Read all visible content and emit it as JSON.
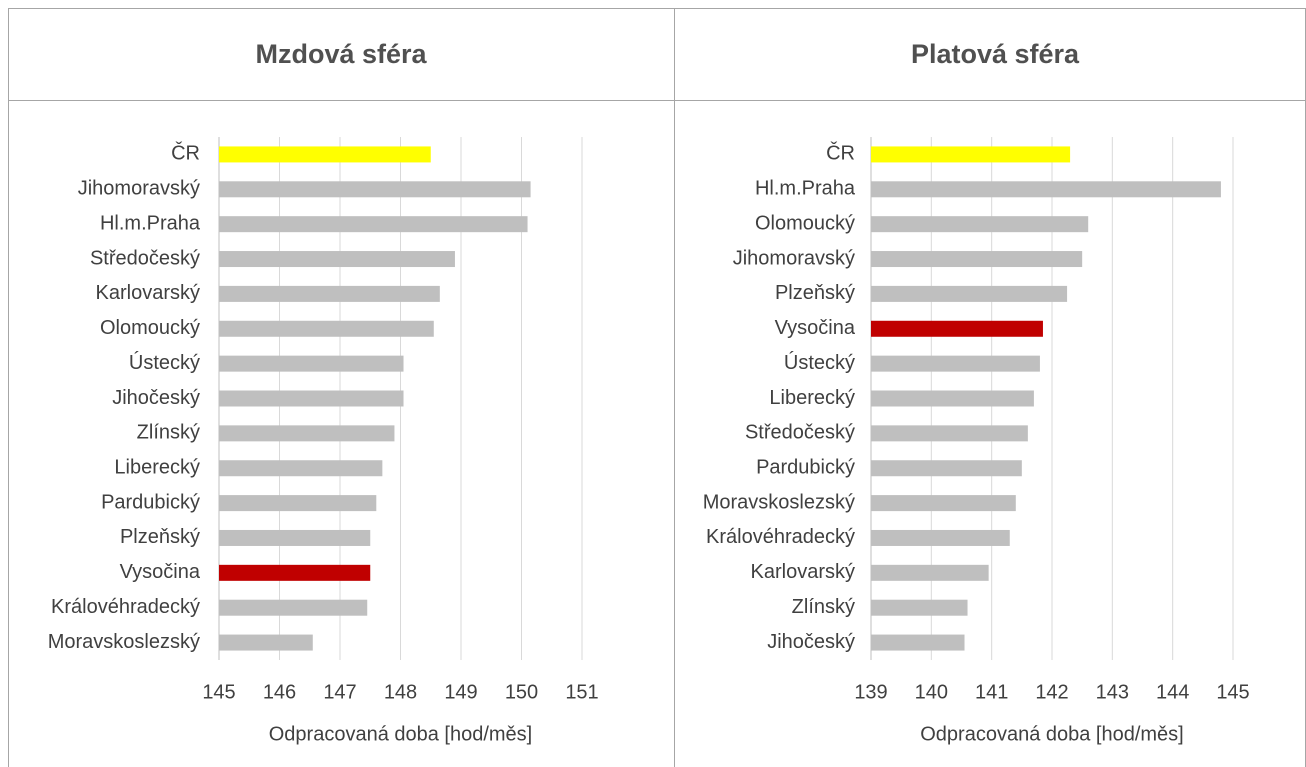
{
  "chart_data": [
    {
      "type": "bar",
      "orientation": "horizontal",
      "title": "Mzdová sféra",
      "categories": [
        "ČR",
        "Jihomoravský",
        "Hl.m.Praha",
        "Středočeský",
        "Karlovarský",
        "Olomoucký",
        "Ústecký",
        "Jihočeský",
        "Zlínský",
        "Liberecký",
        "Pardubický",
        "Plzeňský",
        "Vysočina",
        "Královéhradecký",
        "Moravskoslezský"
      ],
      "values": [
        148.5,
        150.15,
        150.1,
        148.9,
        148.65,
        148.55,
        148.05,
        148.05,
        147.9,
        147.7,
        147.6,
        147.5,
        147.5,
        147.45,
        146.55
      ],
      "colors": [
        "#ffff00",
        "#bfbfbf",
        "#bfbfbf",
        "#bfbfbf",
        "#bfbfbf",
        "#bfbfbf",
        "#bfbfbf",
        "#bfbfbf",
        "#bfbfbf",
        "#bfbfbf",
        "#bfbfbf",
        "#bfbfbf",
        "#c00000",
        "#bfbfbf",
        "#bfbfbf"
      ],
      "xlim": [
        145,
        151
      ],
      "xticks": [
        145,
        146,
        147,
        148,
        149,
        150,
        151
      ],
      "x_label": "Odpracovaná doba [hod/měs]",
      "grid": true
    },
    {
      "type": "bar",
      "orientation": "horizontal",
      "title": "Platová sféra",
      "categories": [
        "ČR",
        "Hl.m.Praha",
        "Olomoucký",
        "Jihomoravský",
        "Plzeňský",
        "Vysočina",
        "Ústecký",
        "Liberecký",
        "Středočeský",
        "Pardubický",
        "Moravskoslezský",
        "Královéhradecký",
        "Karlovarský",
        "Zlínský",
        "Jihočeský"
      ],
      "values": [
        142.3,
        144.8,
        142.6,
        142.5,
        142.25,
        141.85,
        141.8,
        141.7,
        141.6,
        141.5,
        141.4,
        141.3,
        140.95,
        140.6,
        140.55
      ],
      "colors": [
        "#ffff00",
        "#bfbfbf",
        "#bfbfbf",
        "#bfbfbf",
        "#bfbfbf",
        "#c00000",
        "#bfbfbf",
        "#bfbfbf",
        "#bfbfbf",
        "#bfbfbf",
        "#bfbfbf",
        "#bfbfbf",
        "#bfbfbf",
        "#bfbfbf",
        "#bfbfbf"
      ],
      "xlim": [
        139,
        145
      ],
      "xticks": [
        139,
        140,
        141,
        142,
        143,
        144,
        145
      ],
      "x_label": "Odpracovaná doba [hod/měs]",
      "grid": true
    }
  ]
}
